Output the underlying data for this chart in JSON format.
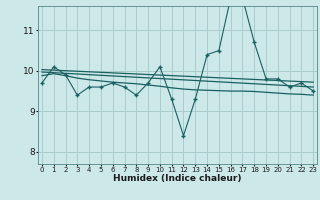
{
  "xlabel": "Humidex (Indice chaleur)",
  "bg_color": "#cce8e8",
  "grid_color": "#aacccc",
  "line_color": "#1a6060",
  "x_ticks": [
    0,
    1,
    2,
    3,
    4,
    5,
    6,
    7,
    8,
    9,
    10,
    11,
    12,
    13,
    14,
    15,
    16,
    17,
    18,
    19,
    20,
    21,
    22,
    23
  ],
  "y_ticks": [
    8,
    9,
    10,
    11
  ],
  "ylim": [
    7.7,
    11.6
  ],
  "xlim": [
    -0.3,
    23.3
  ],
  "series1_x": [
    0,
    1,
    2,
    3,
    4,
    5,
    6,
    7,
    8,
    9,
    10,
    11,
    12,
    13,
    14,
    15,
    16,
    17,
    18,
    19,
    20,
    21,
    22,
    23
  ],
  "series1_y": [
    9.7,
    10.1,
    9.9,
    9.4,
    9.6,
    9.6,
    9.7,
    9.6,
    9.4,
    9.7,
    10.1,
    9.3,
    8.4,
    9.3,
    10.4,
    10.5,
    11.8,
    11.8,
    10.7,
    9.8,
    9.8,
    9.6,
    9.7,
    9.5
  ],
  "series2_x": [
    0,
    1,
    2,
    3,
    4,
    5,
    6,
    7,
    8,
    9,
    10,
    11,
    12,
    13,
    14,
    15,
    16,
    17,
    18,
    19,
    20,
    21,
    22,
    23
  ],
  "series2_y": [
    9.88,
    9.93,
    9.88,
    9.82,
    9.78,
    9.75,
    9.72,
    9.7,
    9.68,
    9.65,
    9.62,
    9.58,
    9.55,
    9.53,
    9.52,
    9.51,
    9.5,
    9.5,
    9.49,
    9.47,
    9.45,
    9.43,
    9.42,
    9.4
  ],
  "series3_x": [
    0,
    23
  ],
  "series3_y": [
    9.97,
    9.6
  ],
  "series4_x": [
    0,
    23
  ],
  "series4_y": [
    10.03,
    9.72
  ]
}
